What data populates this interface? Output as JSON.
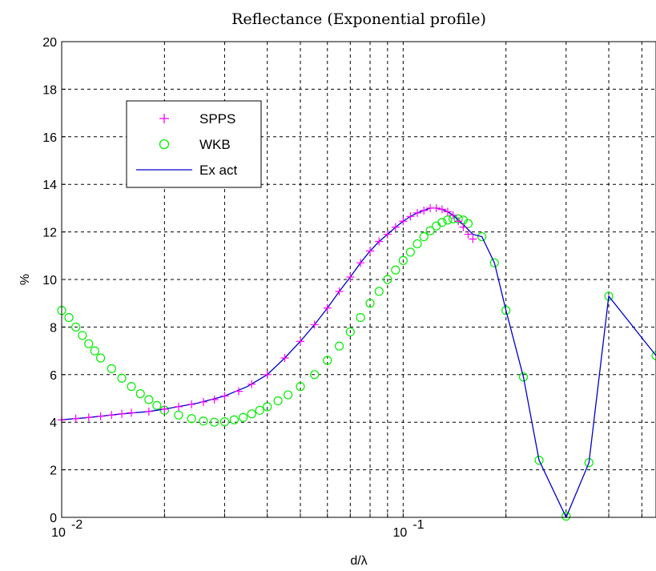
{
  "chart_data": {
    "type": "line",
    "title": "Reflectance (Exponential profile)",
    "xlabel": "d/λ",
    "ylabel": "%",
    "xscale": "log",
    "xlim": [
      0.01,
      0.55
    ],
    "ylim": [
      0,
      20
    ],
    "yticks": [
      "0",
      "2",
      "4",
      "6",
      "8",
      "10",
      "12",
      "14",
      "16",
      "18",
      "20"
    ],
    "xticks": [
      {
        "value": 0.01,
        "base": "10",
        "exp": "-2"
      },
      {
        "value": 0.1,
        "base": "10",
        "exp": "-1"
      }
    ],
    "grid": true,
    "legend_position": "top-left",
    "series": [
      {
        "name": "SPPS",
        "marker": "plus",
        "color": "#ff00ff",
        "x": [
          0.01,
          0.011,
          0.012,
          0.013,
          0.014,
          0.015,
          0.016,
          0.018,
          0.02,
          0.022,
          0.024,
          0.026,
          0.028,
          0.03,
          0.033,
          0.036,
          0.04,
          0.045,
          0.05,
          0.055,
          0.06,
          0.065,
          0.07,
          0.075,
          0.08,
          0.085,
          0.09,
          0.095,
          0.1,
          0.105,
          0.11,
          0.115,
          0.12,
          0.125,
          0.13,
          0.135,
          0.14,
          0.145,
          0.15,
          0.155,
          0.16
        ],
        "y": [
          4.1,
          4.15,
          4.2,
          4.25,
          4.3,
          4.35,
          4.4,
          4.45,
          4.55,
          4.65,
          4.75,
          4.85,
          4.95,
          5.1,
          5.3,
          5.6,
          6.0,
          6.7,
          7.4,
          8.1,
          8.8,
          9.5,
          10.1,
          10.7,
          11.2,
          11.6,
          11.9,
          12.2,
          12.45,
          12.65,
          12.8,
          12.9,
          13.0,
          13.0,
          12.95,
          12.85,
          12.7,
          12.45,
          12.2,
          11.9,
          11.7
        ]
      },
      {
        "name": "WKB",
        "marker": "circle",
        "color": "#00ee00",
        "x": [
          0.01,
          0.0105,
          0.011,
          0.0115,
          0.012,
          0.0125,
          0.013,
          0.014,
          0.015,
          0.016,
          0.017,
          0.018,
          0.019,
          0.02,
          0.022,
          0.024,
          0.026,
          0.028,
          0.03,
          0.032,
          0.034,
          0.036,
          0.038,
          0.04,
          0.043,
          0.046,
          0.05,
          0.055,
          0.06,
          0.065,
          0.07,
          0.075,
          0.08,
          0.085,
          0.09,
          0.095,
          0.1,
          0.105,
          0.11,
          0.115,
          0.12,
          0.125,
          0.13,
          0.135,
          0.14,
          0.145,
          0.15,
          0.155,
          0.17,
          0.185,
          0.2,
          0.225,
          0.25,
          0.3,
          0.35,
          0.4,
          0.55
        ],
        "y": [
          8.7,
          8.4,
          8.0,
          7.65,
          7.3,
          7.0,
          6.7,
          6.25,
          5.85,
          5.5,
          5.2,
          4.95,
          4.7,
          4.5,
          4.3,
          4.15,
          4.05,
          4.0,
          4.02,
          4.1,
          4.2,
          4.35,
          4.5,
          4.65,
          4.9,
          5.15,
          5.5,
          6.0,
          6.6,
          7.2,
          7.8,
          8.4,
          9.0,
          9.5,
          10.0,
          10.4,
          10.8,
          11.15,
          11.5,
          11.8,
          12.05,
          12.25,
          12.4,
          12.5,
          12.55,
          12.55,
          12.5,
          12.35,
          11.8,
          10.7,
          8.7,
          5.9,
          2.4,
          0.05,
          2.3,
          9.3,
          6.8
        ]
      },
      {
        "name": "Ex act",
        "marker": "line",
        "color": "#0000cc",
        "x": [
          0.01,
          0.012,
          0.015,
          0.018,
          0.02,
          0.025,
          0.03,
          0.035,
          0.04,
          0.045,
          0.05,
          0.055,
          0.06,
          0.065,
          0.07,
          0.075,
          0.08,
          0.085,
          0.09,
          0.095,
          0.1,
          0.105,
          0.11,
          0.115,
          0.12,
          0.125,
          0.13,
          0.135,
          0.14,
          0.15,
          0.16,
          0.17,
          0.185,
          0.2,
          0.225,
          0.25,
          0.3,
          0.35,
          0.4,
          0.55
        ],
        "y": [
          4.1,
          4.2,
          4.35,
          4.45,
          4.55,
          4.8,
          5.1,
          5.5,
          6.0,
          6.7,
          7.4,
          8.1,
          8.8,
          9.5,
          10.1,
          10.7,
          11.2,
          11.6,
          11.9,
          12.2,
          12.45,
          12.65,
          12.8,
          12.9,
          13.0,
          13.0,
          12.95,
          12.85,
          12.7,
          12.3,
          11.9,
          11.8,
          10.7,
          8.7,
          5.9,
          2.4,
          0.0,
          2.3,
          9.3,
          6.8
        ]
      }
    ]
  }
}
